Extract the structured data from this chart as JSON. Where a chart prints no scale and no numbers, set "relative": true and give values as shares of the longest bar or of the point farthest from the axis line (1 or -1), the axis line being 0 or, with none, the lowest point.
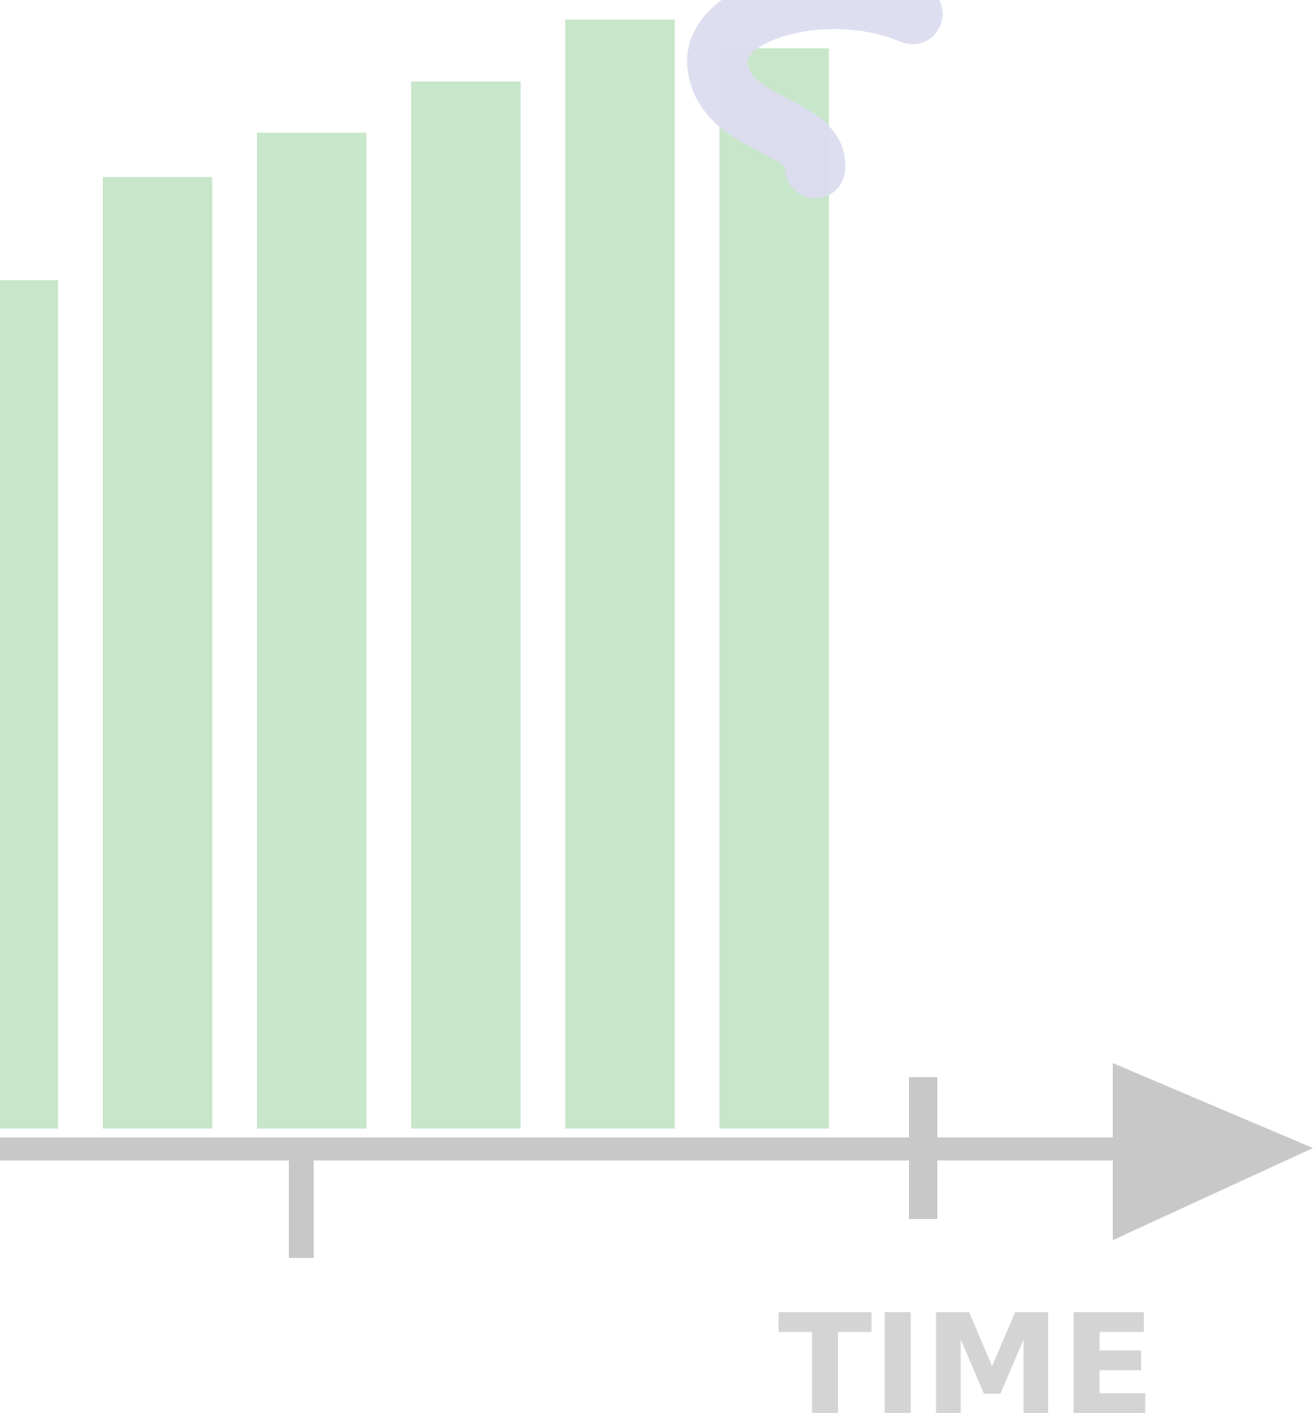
{
  "chart_data": {
    "type": "bar",
    "relative": true,
    "xlabel": "TIME",
    "categories": [
      null,
      null,
      null,
      null,
      null,
      null
    ],
    "values": [
      0.765,
      0.858,
      0.898,
      0.944,
      1,
      0.974
    ],
    "color": "#c8e6c9"
  }
}
